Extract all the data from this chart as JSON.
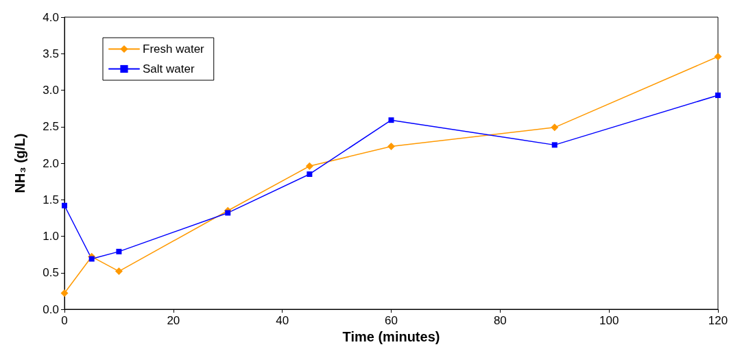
{
  "chart_data": {
    "type": "line",
    "xlabel": "Time (minutes)",
    "ylabel": "NH₃ (g/L)",
    "x": [
      0,
      5,
      10,
      30,
      45,
      60,
      90,
      120
    ],
    "series": [
      {
        "name": "Fresh water",
        "color": "#ff9900",
        "marker": "diamond",
        "values": [
          0.22,
          0.72,
          0.52,
          1.35,
          1.96,
          2.23,
          2.49,
          3.46
        ]
      },
      {
        "name": "Salt water",
        "color": "#0000ff",
        "marker": "square",
        "values": [
          1.42,
          0.69,
          0.79,
          1.32,
          1.85,
          2.59,
          2.25,
          2.93
        ]
      }
    ],
    "xlim": [
      0,
      120
    ],
    "xticks": [
      0,
      20,
      40,
      60,
      80,
      100,
      120
    ],
    "ylim": [
      0,
      4
    ],
    "yticks": [
      {
        "value": 0,
        "label": "0.0"
      },
      0.5,
      {
        "value": 1,
        "label": "1.0"
      },
      1.5,
      {
        "value": 2,
        "label": "2.0"
      },
      2.5,
      {
        "value": 3,
        "label": "3.0"
      },
      3.5,
      {
        "value": 4,
        "label": "4.0"
      }
    ],
    "grid": false,
    "legend": "top left",
    "line_style": "solid"
  }
}
